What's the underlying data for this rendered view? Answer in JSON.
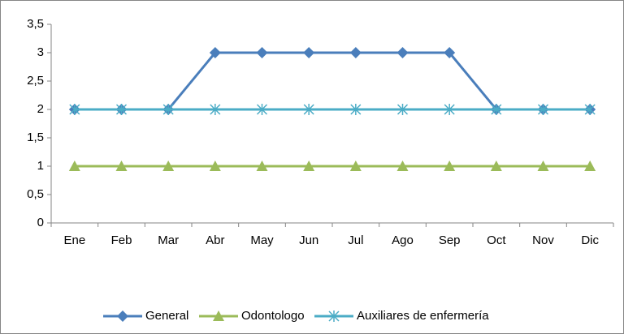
{
  "chart_data": {
    "type": "line",
    "categories": [
      "Ene",
      "Feb",
      "Mar",
      "Abr",
      "May",
      "Jun",
      "Jul",
      "Ago",
      "Sep",
      "Oct",
      "Nov",
      "Dic"
    ],
    "series": [
      {
        "name": "General",
        "color": "#4a7ebb",
        "marker": "diamond",
        "values": [
          2,
          2,
          2,
          3,
          3,
          3,
          3,
          3,
          3,
          2,
          2,
          2
        ]
      },
      {
        "name": "Odontologo",
        "color": "#9bbb59",
        "marker": "triangle",
        "values": [
          1,
          1,
          1,
          1,
          1,
          1,
          1,
          1,
          1,
          1,
          1,
          1
        ]
      },
      {
        "name": "Auxiliares de enfermería",
        "color": "#4bacc6",
        "marker": "asterisk",
        "values": [
          2,
          2,
          2,
          2,
          2,
          2,
          2,
          2,
          2,
          2,
          2,
          2
        ]
      }
    ],
    "ylim": [
      0,
      3.5
    ],
    "yticks": [
      0,
      {
        "value": 0.5,
        "label": "0,5"
      },
      1,
      {
        "value": 1.5,
        "label": "1,5"
      },
      2,
      {
        "value": 2.5,
        "label": "2,5"
      },
      3,
      {
        "value": 3.5,
        "label": "3,5"
      }
    ],
    "grid": false,
    "legend": "bottom"
  }
}
